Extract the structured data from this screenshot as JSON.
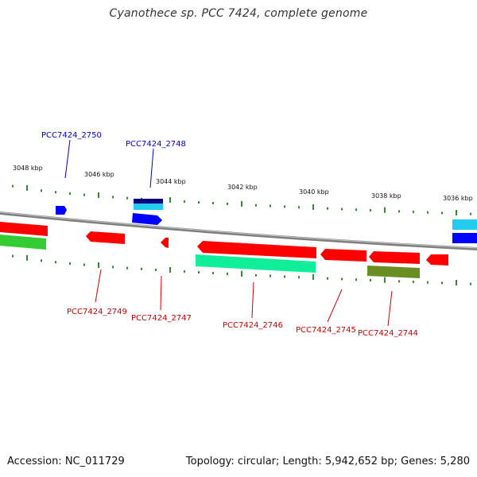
{
  "title": "Cyanothece sp. PCC 7424, complete genome",
  "footer": {
    "accession": "Accession: NC_011729",
    "stats": "Topology: circular; Length: 5,942,652 bp; Genes: 5,280"
  },
  "scale_labels": [
    "3048 kbp",
    "3046 kbp",
    "3044 kbp",
    "3042 kbp",
    "3040 kbp",
    "3038 kbp",
    "3036 kbp"
  ],
  "gene_labels_top": [
    "PCC7424_2750",
    "PCC7424_2748"
  ],
  "gene_labels_bottom": [
    "PCC7424_2749",
    "PCC7424_2747",
    "PCC7424_2746",
    "PCC7424_2745",
    "PCC7424_2744"
  ],
  "colors": {
    "backbone": "#8a8a8a",
    "forward_label": "#0000cc",
    "reverse_label": "#cc0000",
    "tick": "#2e8b2e",
    "red": "#ff0000",
    "blue": "#0000ff",
    "cyan": "#22ccee",
    "navy": "#000080",
    "green": "#33cc33",
    "teal": "#11ee99",
    "olive": "#6b8e23"
  }
}
